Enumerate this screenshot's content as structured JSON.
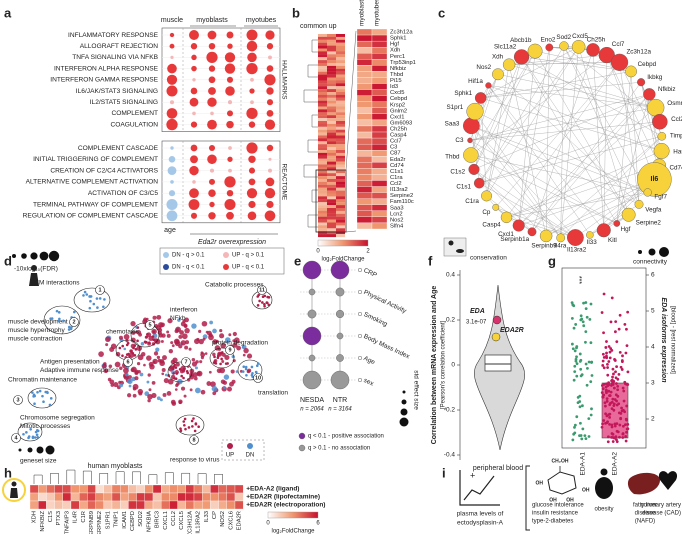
{
  "panel_labels": [
    "a",
    "b",
    "c",
    "d",
    "e",
    "f",
    "g",
    "h",
    "i"
  ],
  "a": {
    "columns": [
      "muscle",
      "myoblasts",
      "myotubes"
    ],
    "hallmarks": {
      "title": "HALLMARKS",
      "sets": [
        "INFLAMMATORY RESPONSE",
        "ALLOGRAFT REJECTION",
        "TNFA SIGNALING VIA NFKB",
        "INTERFERON ALPHA RESPONSE",
        "INTERFERON GAMMA RESPONSE",
        "IL6/JAK/STAT3 SIGNALING",
        "IL2/STAT5 SIGNALING",
        "COMPLEMENT",
        "COAGULATION"
      ]
    },
    "reactome": {
      "title": "REACTOME",
      "sets": [
        "COMPLEMENT CASCADE",
        "INITIAL TRIGGERING OF COMPLEMENT",
        "CREATION OF C2/C4 ACTIVATORS",
        "ALTERNATIVE COMPLEMENT ACTIVATION",
        "ACTIVATION OF C3/C5",
        "TERMINAL PATHWAY OF COMPLEMENT",
        "REGULATION OF COMPLEMENT CASCADE"
      ]
    },
    "age": "age",
    "overexpression": "Eda2r overexpression",
    "size_legend": "-10xlog₁₀(FDR)",
    "color_legend": [
      "DN - q > 0.1",
      "DN - q < 0.1",
      "UP - q > 0.1",
      "UP - q < 0.1"
    ]
  },
  "b": {
    "title": "common up",
    "columns": [
      "myoblasts",
      "myotubes"
    ],
    "genes": [
      "Zc3h12a",
      "Sphk1",
      "Hgf",
      "Xdh",
      "Perc1",
      "Trp53inp1",
      "Nfkbiz",
      "Thbd",
      "Pi15",
      "Id3",
      "Cxcl5",
      "Cebpd",
      "Krsp2",
      "Gnlm2",
      "Cxcl1",
      "Gm6093",
      "Ch25h",
      "Casp4",
      "Ccl7",
      "C3",
      "C87",
      "Eda2r",
      "Cd74",
      "C1s1",
      "C1ra",
      "Ccl2",
      "Il13ra2",
      "Serpine2",
      "Fam110c",
      "Saa3",
      "Lcn2",
      "Nos2",
      "Slfn4"
    ],
    "legend": "log₂FoldChange",
    "legend_ticks": [
      0,
      2
    ]
  },
  "c": {
    "nodes": [
      "Eno2",
      "Sod2",
      "Cxcl5",
      "Ch25h",
      "Ccl7",
      "Zc3h12a",
      "Cebpd",
      "Ikbkg",
      "Nfkbiz",
      "Osmr",
      "Ccl2",
      "Timp1",
      "Has2",
      "Cd74",
      "Il6",
      "Fgf7",
      "Vegfa",
      "Serpine2",
      "Hgf",
      "Kitl",
      "Il33",
      "Il13ra2",
      "Il4ra",
      "Serpinb9",
      "Serpinb1a",
      "Cxcl1",
      "Casp4",
      "Cp",
      "C1ra",
      "C1s1",
      "C1s2",
      "Thbd",
      "C3",
      "Saa3",
      "S1pr1",
      "Sphk1",
      "Hif1a",
      "Nos2",
      "Xdh",
      "Slc11a2",
      "Abcb1b"
    ],
    "conservation": "conservation",
    "connectivity": "connectivity"
  },
  "d": {
    "clusters": [
      {
        "id": "1",
        "lines": [
          "muscle development",
          "muscle hypertrophy",
          "muscle contraction"
        ]
      },
      {
        "id": "2",
        "lines": [
          "ECM interactions"
        ]
      },
      {
        "id": "3",
        "lines": [
          "Chromatin maintenance"
        ]
      },
      {
        "id": "4",
        "lines": [
          "Chromosome segregation",
          "Mitotic processes"
        ]
      },
      {
        "id": "5",
        "lines": [
          "chemotaxis"
        ]
      },
      {
        "id": "6",
        "lines": [
          "Antigen presentation",
          "Adaptive immune response"
        ]
      },
      {
        "id": "7",
        "lines": [
          "interferon",
          "NFkb"
        ]
      },
      {
        "id": "8",
        "lines": [
          "response to virus"
        ]
      },
      {
        "id": "9",
        "lines": [
          "protein degradation"
        ]
      },
      {
        "id": "10",
        "lines": [
          "translation"
        ]
      },
      {
        "id": "11",
        "lines": [
          "Catabolic processes"
        ]
      }
    ],
    "size_legend": "geneset size",
    "color_legend": [
      "UP",
      "DN"
    ]
  },
  "e": {
    "variables": [
      "CRP",
      "Physical Activity",
      "Smoking",
      "Body Mass Index",
      "Age",
      "sex"
    ],
    "cohorts": [
      {
        "name": "NESDA",
        "n": "n = 2064"
      },
      {
        "name": "NTR",
        "n": "n = 3164"
      }
    ],
    "legend": [
      "q < 0.1 - positive association",
      "q > 0.1 - no association"
    ],
    "size_legend": "std effect size"
  },
  "f": {
    "ylabel": "Correlation between mRNA expression and Age",
    "ylabel2": "[Pearson's correlation coefficient]",
    "yticks": [
      0.4,
      0.2,
      0,
      -0.2,
      -0.4
    ],
    "eda": "EDA",
    "eda_p": "3.1e-07",
    "eda2r": "EDA2R",
    "xlabel": "peripheral blood"
  },
  "g": {
    "title": "EDA isoforms expression",
    "title2": "[blood] - [rest normalized]",
    "yticks": [
      6,
      5,
      4,
      3,
      2
    ],
    "groups": [
      "EDA-A1",
      "EDA-A2"
    ],
    "significance": "***"
  },
  "h": {
    "title": "human myoblasts",
    "rows": [
      "+EDA-A2 (ligand)",
      "+EDA2R (lipofectamine)",
      "+EDA2R (electroporation)"
    ],
    "genes": [
      "XDH",
      "NFKBIZ",
      "C1S",
      "PTX3",
      "TNFAIP3",
      "IL4R",
      "C1R",
      "SERPINB9",
      "SERPINE2",
      "S1PR1",
      "TNIP1",
      "ICAM1",
      "CEBPD",
      "SOD2",
      "NFKBIA",
      "BIRC3",
      "CXCL1",
      "CCL2",
      "CXCL5",
      "ZC3H12A",
      "IL13RA2",
      "IL33",
      "CP",
      "NOS2",
      "CXCL6",
      "EDA2R"
    ],
    "legend": "log₂FoldChange",
    "legend_ticks": [
      0,
      6
    ]
  },
  "i": {
    "plasma": [
      "plasma levels of",
      "ectodysplasin-A"
    ],
    "molecule": [
      "CH₂OH",
      "OH",
      "OH",
      "OH",
      "OH"
    ],
    "diseases": [
      {
        "lines": [
          "glucose intolerance",
          "insulin resistance",
          "type-2-diabetes"
        ]
      },
      {
        "lines": [
          "obesity"
        ]
      },
      {
        "lines": [
          "fatty liver",
          "disease",
          "(NAFD)"
        ]
      },
      {
        "lines": [
          "coronary artery",
          "disease (CAD)"
        ]
      }
    ]
  }
}
